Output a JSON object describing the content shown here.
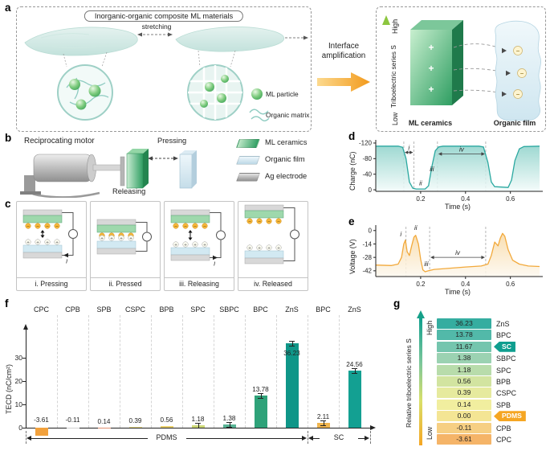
{
  "figure": {
    "panel_labels": {
      "a": "a",
      "b": "b",
      "c": "c",
      "d": "d",
      "e": "e",
      "f": "f",
      "g": "g"
    }
  },
  "symbols": {
    "plus": "+",
    "minus": "−"
  },
  "colors": {
    "teal": "#2aa8a0",
    "orange": "#f2a93b",
    "green": "#2f9e62",
    "blue": "#3d6eb5"
  },
  "panels": {
    "a": {
      "box_title": "Inorganic-organic composite ML materials",
      "stretching": "stretching",
      "legend": {
        "ml_particle": "ML particle",
        "organic_matrix": "Organic matrix"
      },
      "interface_line1": "Interface",
      "interface_line2": "amplification",
      "series_axis_label": "Triboelectric series S",
      "high": "High",
      "low": "Low",
      "ml_ceramics": "ML ceramics",
      "organic_film": "Organic film"
    },
    "b": {
      "motor": "Reciprocating motor",
      "pressing": "Pressing",
      "releasing": "Releasing",
      "legend": {
        "ml_ceramics": "ML ceramics",
        "organic_film": "Organic film",
        "ag_electrode": "Ag electrode"
      }
    },
    "c": {
      "states": [
        "i. Pressing",
        "ii. Pressed",
        "iii. Releasing",
        "iv. Released"
      ],
      "current_label": "I"
    },
    "g": {
      "high": "High",
      "low": "Low"
    }
  },
  "chart_data": [
    {
      "id": "d",
      "type": "line",
      "ylabel": "Charge (nC)",
      "xlabel": "Time (s)",
      "xlim": [
        0,
        0.73
      ],
      "ylim": [
        4,
        -124
      ],
      "xticks": [
        0.2,
        0.4,
        0.6
      ],
      "yticks": [
        -120,
        -80,
        -40,
        0
      ],
      "color": "#2aa8a0",
      "dashed_x": [
        0.125,
        0.17,
        0.275,
        0.49
      ],
      "points": [
        [
          0,
          -112
        ],
        [
          0.1,
          -112
        ],
        [
          0.12,
          -109
        ],
        [
          0.135,
          -80
        ],
        [
          0.15,
          -20
        ],
        [
          0.165,
          -4
        ],
        [
          0.18,
          -2
        ],
        [
          0.22,
          -2
        ],
        [
          0.235,
          -10
        ],
        [
          0.25,
          -60
        ],
        [
          0.265,
          -100
        ],
        [
          0.28,
          -110
        ],
        [
          0.3,
          -112
        ],
        [
          0.46,
          -112
        ],
        [
          0.48,
          -110
        ],
        [
          0.5,
          -70
        ],
        [
          0.515,
          -20
        ],
        [
          0.53,
          -8
        ],
        [
          0.59,
          -6
        ],
        [
          0.605,
          -25
        ],
        [
          0.62,
          -75
        ],
        [
          0.64,
          -105
        ],
        [
          0.66,
          -111
        ],
        [
          0.73,
          -112
        ]
      ],
      "annotations": [
        {
          "label": "i",
          "x1": 0.125,
          "x2": 0.17,
          "y": -96
        },
        {
          "label": "ii",
          "x": 0.2,
          "y": -12
        },
        {
          "label": "iii",
          "x": 0.25,
          "y": -48
        },
        {
          "label": "iv",
          "x1": 0.275,
          "x2": 0.49,
          "y": -92
        }
      ]
    },
    {
      "id": "e",
      "type": "line",
      "ylabel": "Voltage (V)",
      "xlabel": "Time (s)",
      "xlim": [
        0,
        0.73
      ],
      "ylim": [
        -48,
        4
      ],
      "xticks": [
        0.2,
        0.4,
        0.6
      ],
      "yticks": [
        0,
        -14,
        -28,
        -42
      ],
      "color": "#f2a93b",
      "dashed_x": [
        0.135,
        0.24,
        0.49
      ],
      "points": [
        [
          0,
          -36
        ],
        [
          0.07,
          -36.5
        ],
        [
          0.1,
          -35
        ],
        [
          0.115,
          -28
        ],
        [
          0.125,
          -14
        ],
        [
          0.132,
          -10
        ],
        [
          0.14,
          -22
        ],
        [
          0.15,
          -26
        ],
        [
          0.16,
          -16
        ],
        [
          0.17,
          -7
        ],
        [
          0.178,
          -5
        ],
        [
          0.19,
          -14
        ],
        [
          0.2,
          -30
        ],
        [
          0.21,
          -41
        ],
        [
          0.22,
          -43
        ],
        [
          0.235,
          -42
        ],
        [
          0.26,
          -40.5
        ],
        [
          0.32,
          -39.5
        ],
        [
          0.4,
          -38
        ],
        [
          0.47,
          -37
        ],
        [
          0.5,
          -35
        ],
        [
          0.515,
          -26
        ],
        [
          0.53,
          -12
        ],
        [
          0.545,
          -16
        ],
        [
          0.555,
          -8
        ],
        [
          0.565,
          -3
        ],
        [
          0.575,
          -6
        ],
        [
          0.59,
          -20
        ],
        [
          0.61,
          -31
        ],
        [
          0.64,
          -35
        ],
        [
          0.68,
          -37
        ],
        [
          0.73,
          -37.5
        ]
      ],
      "annotations": [
        {
          "label": "i",
          "x": 0.112,
          "y": -6
        },
        {
          "label": "ii",
          "x": 0.178,
          "y": 0.5
        },
        {
          "label": "iii",
          "x": 0.225,
          "y": -37
        },
        {
          "label": "iv",
          "x1": 0.24,
          "x2": 0.49,
          "y": -28
        }
      ]
    },
    {
      "id": "f",
      "type": "bar",
      "ylabel": "TECD (nC/cm²)",
      "categories": [
        "CPC",
        "CPB",
        "SPB",
        "CSPC",
        "BPB",
        "SPC",
        "SBPC",
        "BPC",
        "ZnS",
        "BPC",
        "ZnS"
      ],
      "values": [
        -3.61,
        -0.11,
        0.14,
        0.39,
        0.56,
        1.18,
        1.38,
        13.78,
        36.23,
        2.11,
        24.56
      ],
      "bar_colors": [
        "#f2a13c",
        "#cfcfcf",
        "#df8f6f",
        "#f0e18c",
        "#ecd26e",
        "#cdd977",
        "#57b394",
        "#2fa279",
        "#0f9688",
        "#f0b54e",
        "#13a092"
      ],
      "yticks": [
        0,
        10,
        20,
        30
      ],
      "ylim": [
        -6,
        38
      ],
      "groups": [
        {
          "label": "PDMS",
          "from": 0,
          "to": 8
        },
        {
          "label": "SC",
          "from": 9,
          "to": 10
        }
      ]
    },
    {
      "id": "g",
      "type": "table",
      "title": "Relative triboelectric series S",
      "rows": [
        {
          "value": "36.23",
          "name": "ZnS",
          "color": "#35ada0"
        },
        {
          "value": "13.78",
          "name": "BPC",
          "color": "#52b9a9"
        },
        {
          "value": "11.67",
          "name": "SC",
          "color": "#74c5ae",
          "tag": true,
          "tag_color": "#0f9e8f"
        },
        {
          "value": "1.38",
          "name": "SBPC",
          "color": "#9bd2b2"
        },
        {
          "value": "1.18",
          "name": "SPC",
          "color": "#b8dcab"
        },
        {
          "value": "0.56",
          "name": "BPB",
          "color": "#d2e4a0"
        },
        {
          "value": "0.39",
          "name": "CSPC",
          "color": "#e6ea9e"
        },
        {
          "value": "0.14",
          "name": "SPB",
          "color": "#f1ee9f"
        },
        {
          "value": "0.00",
          "name": "PDMS",
          "color": "#f4e594",
          "tag": true,
          "tag_color": "#f5a623"
        },
        {
          "value": "-0.11",
          "name": "CPB",
          "color": "#f6cf83"
        },
        {
          "value": "-3.61",
          "name": "CPC",
          "color": "#f5b468"
        }
      ]
    }
  ]
}
